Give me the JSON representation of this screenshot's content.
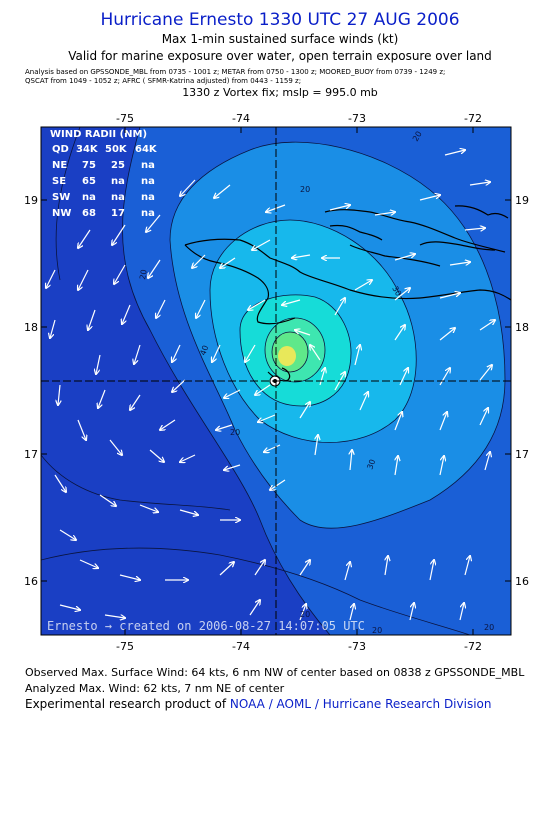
{
  "title": "Hurricane Ernesto 1330 UTC 27 AUG 2006",
  "subtitle": "Max 1-min sustained surface winds (kt)",
  "subtitle2": "Valid for marine exposure over water, open terrain exposure over land",
  "analysis_line1": "Analysis based on  GPSSONDE_MBL from 0735 - 1001 z;  METAR from 0750 - 1300 z;  MOORED_BUOY from 0739 - 1249 z;",
  "analysis_line2": "QSCAT from 1049 - 1052 z;  AFRC ( SFMR-Katrina adjusted) from 0443 - 1159 z;",
  "vortex_fix": "1330 z Vortex fix; mslp = 995.0 mb",
  "axes": {
    "lon_ticks": [
      "-75",
      "-74",
      "-73",
      "-72"
    ],
    "lat_ticks": [
      "19",
      "18",
      "17",
      "16"
    ]
  },
  "wind_radii": {
    "header": "WIND RADII (NM)",
    "columns": [
      "QD",
      "34K",
      "50K",
      "64K"
    ],
    "rows": [
      {
        "qd": "NE",
        "k34": "75",
        "k50": "25",
        "k64": "na"
      },
      {
        "qd": "SE",
        "k34": "65",
        "k50": "na",
        "k64": "na"
      },
      {
        "qd": "SW",
        "k34": "na",
        "k50": "na",
        "k64": "na"
      },
      {
        "qd": "NW",
        "k34": "68",
        "k50": "17",
        "k64": "na"
      }
    ]
  },
  "contour_labels": [
    "20",
    "30",
    "40",
    "20",
    "30",
    "20",
    "20",
    "20",
    "20",
    "20"
  ],
  "credit": "Ernesto  →  created on 2006-08-27 14:07:05 UTC",
  "observed_max": "Observed Max. Surface Wind: 64 kts, 6 nm NW of center based on 0838 z GPSSONDE_MBL",
  "analyzed_max": "Analyzed Max. Wind: 62 kts, 7 nm NE of center",
  "experimental_prefix": "Experimental research product of ",
  "experimental_link": "NOAA / AOML / Hurricane Research Division",
  "colors": {
    "title": "#0a1fc8",
    "band_outer": "#1a3fc4",
    "band_20": "#1a5fd6",
    "band_30": "#1a8ee6",
    "band_40": "#17b8ec",
    "band_50": "#16dcd8",
    "band_60": "#5fe88a",
    "center_yellow": "#e8e85a"
  }
}
